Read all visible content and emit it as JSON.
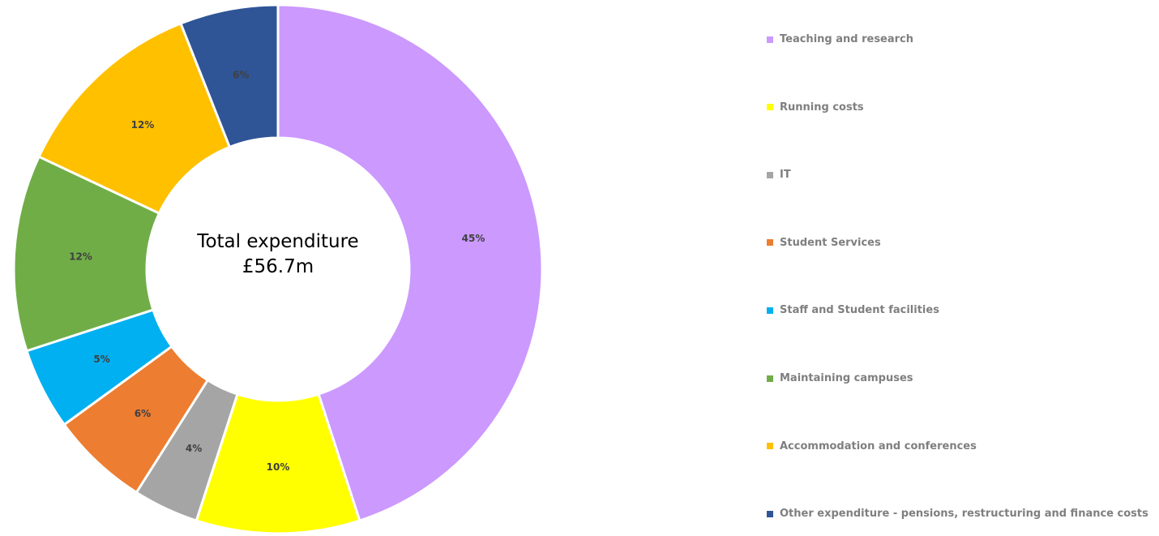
{
  "chart_data": {
    "type": "pie",
    "donut": true,
    "center_text": [
      "Total expenditure",
      "£56.7m"
    ],
    "legend_position": "right",
    "slices": [
      {
        "label": "Teaching and research",
        "value": 45,
        "display": "45%",
        "color": "#cc99ff"
      },
      {
        "label": "Running costs",
        "value": 10,
        "display": "10%",
        "color": "#ffff00"
      },
      {
        "label": "IT",
        "value": 4,
        "display": "4%",
        "color": "#a5a5a5"
      },
      {
        "label": "Student Services",
        "value": 6,
        "display": "6%",
        "color": "#ed7d31"
      },
      {
        "label": "Staff and Student facilities",
        "value": 5,
        "display": "5%",
        "color": "#00b0f0"
      },
      {
        "label": "Maintaining campuses",
        "value": 12,
        "display": "12%",
        "color": "#70ad47"
      },
      {
        "label": "Accommodation and conferences",
        "value": 12,
        "display": "12%",
        "color": "#ffc000"
      },
      {
        "label": "Other expenditure - pensions, restructuring and finance costs",
        "value": 6,
        "display": "6%",
        "color": "#2f5597"
      }
    ]
  }
}
